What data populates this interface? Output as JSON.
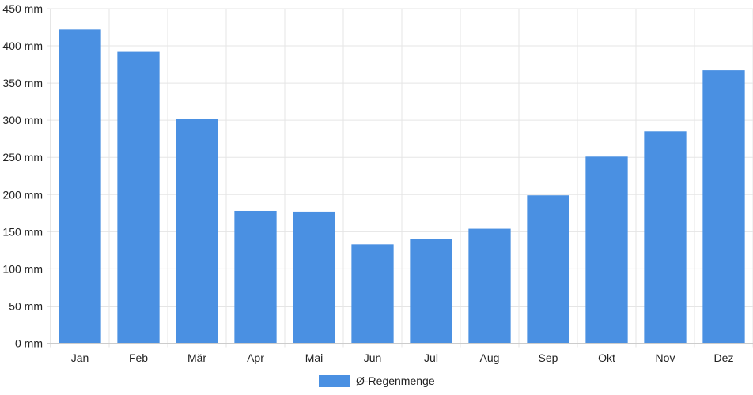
{
  "chart_data": {
    "type": "bar",
    "categories": [
      "Jan",
      "Feb",
      "Mär",
      "Apr",
      "Mai",
      "Jun",
      "Jul",
      "Aug",
      "Sep",
      "Okt",
      "Nov",
      "Dez"
    ],
    "series": [
      {
        "name": "Ø-Regenmenge",
        "values": [
          422,
          392,
          302,
          178,
          177,
          133,
          140,
          154,
          199,
          251,
          285,
          367
        ],
        "color": "#4a90e2"
      }
    ],
    "y_ticks": [
      "0 mm",
      "50 mm",
      "100 mm",
      "150 mm",
      "200 mm",
      "250 mm",
      "300 mm",
      "350 mm",
      "400 mm",
      "450 mm"
    ],
    "ylim": [
      0,
      450
    ],
    "y_unit": "mm",
    "grid": true,
    "legend_position": "bottom-center"
  }
}
